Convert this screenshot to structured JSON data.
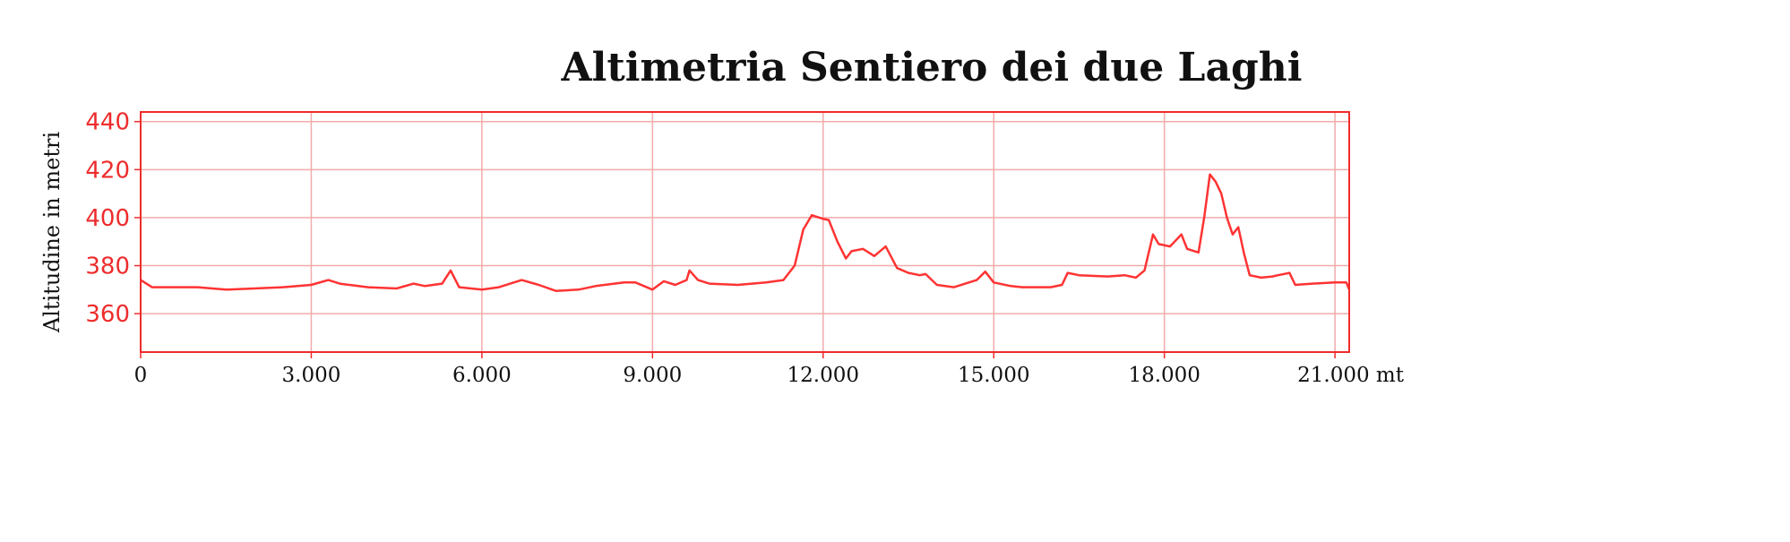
{
  "chart_data": {
    "type": "line",
    "title": "Altimetria Sentiero dei due Laghi",
    "xlabel": "",
    "ylabel": "Altitudine in metri",
    "xlim": [
      0,
      21250
    ],
    "ylim": [
      344,
      444
    ],
    "grid": true,
    "xticks": [
      0,
      3000,
      6000,
      9000,
      12000,
      15000,
      18000,
      21000
    ],
    "xtick_labels": [
      "0",
      "3.000",
      "6.000",
      "9.000",
      "12.000",
      "15.000",
      "18.000",
      "21.000 mt"
    ],
    "yticks": [
      360,
      380,
      400,
      420,
      440
    ],
    "ytick_labels": [
      "360",
      "380",
      "400",
      "420",
      "440"
    ],
    "colors": {
      "line": "#ff3333",
      "spine": "#ee2c2c",
      "grid": "#f2aaaa",
      "ytick_text": "#ee2c2c"
    },
    "x": [
      0,
      200,
      500,
      1000,
      1500,
      2000,
      2500,
      3000,
      3300,
      3500,
      4000,
      4500,
      4800,
      5000,
      5300,
      5450,
      5600,
      6000,
      6300,
      6700,
      7000,
      7300,
      7700,
      8000,
      8500,
      8700,
      9000,
      9200,
      9400,
      9600,
      9650,
      9800,
      10000,
      10500,
      11000,
      11300,
      11500,
      11650,
      11800,
      12000,
      12100,
      12250,
      12400,
      12500,
      12700,
      12900,
      13100,
      13300,
      13500,
      13700,
      13800,
      14000,
      14300,
      14700,
      14850,
      15000,
      15300,
      15500,
      16000,
      16200,
      16300,
      16500,
      17000,
      17300,
      17500,
      17650,
      17800,
      17900,
      18100,
      18300,
      18400,
      18600,
      18700,
      18800,
      18900,
      19000,
      19100,
      19200,
      19300,
      19400,
      19500,
      19700,
      19900,
      20000,
      20200,
      20300,
      20600,
      21000,
      21200,
      21250
    ],
    "y": [
      374,
      371,
      371,
      371,
      370,
      370.5,
      371,
      372,
      374,
      372.5,
      371,
      370.5,
      372.5,
      371.5,
      372.5,
      378,
      371,
      370,
      371,
      374,
      372,
      369.5,
      370,
      371.5,
      373,
      373,
      370,
      373.5,
      372,
      374,
      378,
      374,
      372.5,
      372,
      373,
      374,
      380,
      395,
      401,
      399.5,
      399,
      390,
      383,
      386,
      387,
      384,
      388,
      379,
      377,
      376,
      376.5,
      372,
      371,
      374,
      377.5,
      373,
      371.5,
      371,
      371,
      372,
      377,
      376,
      375.5,
      376,
      375,
      378,
      393,
      389,
      388,
      393,
      387,
      385.5,
      400,
      418,
      415,
      410,
      400,
      393,
      396,
      385,
      376,
      375,
      375.5,
      376,
      377,
      372,
      372.5,
      373,
      373,
      370
    ]
  }
}
